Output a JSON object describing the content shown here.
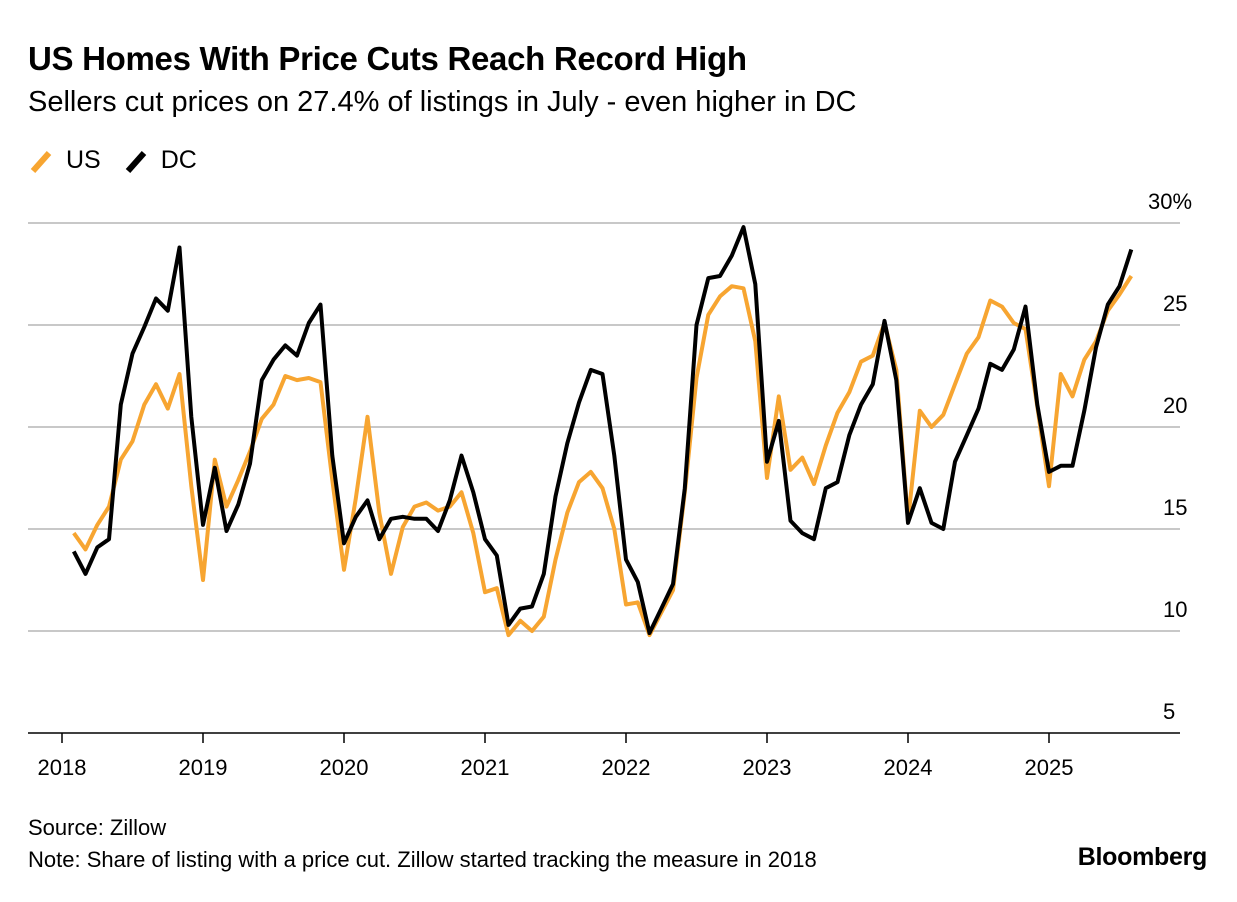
{
  "header": {
    "title": "US Homes With Price Cuts Reach Record High",
    "subtitle": "Sellers cut prices on 27.4% of listings in July - even higher in DC"
  },
  "legend": [
    {
      "label": "US",
      "color": "#f7a531"
    },
    {
      "label": "DC",
      "color": "#000000"
    }
  ],
  "footer": {
    "source": "Source: Zillow",
    "note": "Note: Share of listing with a price cut. Zillow started tracking the measure in 2018",
    "brand": "Bloomberg"
  },
  "chart_data": {
    "type": "line",
    "x_start": "2018-02",
    "x_unit": "month",
    "xlim": [
      "2018-01",
      "2026-01"
    ],
    "ylim": [
      5,
      30
    ],
    "y_ticks": [
      5,
      10,
      15,
      20,
      25,
      30
    ],
    "y_tick_labels": [
      "5",
      "10",
      "15",
      "20",
      "25",
      "30%"
    ],
    "x_tick_labels": [
      "2018",
      "2019",
      "2020",
      "2021",
      "2022",
      "2023",
      "2024",
      "2025"
    ],
    "grid": true,
    "legend_position": "top-left",
    "series": [
      {
        "name": "US",
        "color": "#f7a531",
        "values": [
          14.8,
          14.0,
          15.2,
          16.1,
          18.4,
          19.3,
          21.1,
          22.1,
          20.9,
          22.6,
          17.1,
          12.5,
          18.4,
          16.1,
          17.4,
          18.8,
          20.4,
          21.1,
          22.5,
          22.3,
          22.4,
          22.2,
          17.4,
          13.0,
          16.5,
          20.5,
          15.8,
          12.8,
          15.1,
          16.1,
          16.3,
          15.9,
          16.1,
          16.8,
          14.8,
          11.9,
          12.1,
          9.8,
          10.5,
          10.0,
          10.7,
          13.5,
          15.8,
          17.3,
          17.8,
          17.0,
          15.0,
          11.3,
          11.4,
          9.8,
          10.9,
          12.0,
          16.8,
          22.4,
          25.5,
          26.4,
          26.9,
          26.8,
          24.2,
          17.5,
          21.5,
          17.9,
          18.5,
          17.2,
          19.1,
          20.7,
          21.7,
          23.2,
          23.5,
          25.1,
          22.8,
          15.4,
          20.8,
          20.0,
          20.6,
          22.1,
          23.6,
          24.4,
          26.2,
          25.9,
          25.1,
          24.8,
          21.0,
          17.1,
          22.6,
          21.5,
          23.3,
          24.2,
          25.7,
          26.5,
          27.4
        ]
      },
      {
        "name": "DC",
        "color": "#000000",
        "values": [
          13.9,
          12.8,
          14.1,
          14.5,
          21.1,
          23.6,
          24.9,
          26.3,
          25.7,
          28.8,
          20.5,
          15.2,
          18.0,
          14.9,
          16.2,
          18.2,
          22.3,
          23.3,
          24.0,
          23.5,
          25.1,
          26.0,
          18.6,
          14.3,
          15.6,
          16.4,
          14.5,
          15.5,
          15.6,
          15.5,
          15.5,
          14.9,
          16.4,
          18.6,
          16.8,
          14.5,
          13.7,
          10.3,
          11.1,
          11.2,
          12.8,
          16.6,
          19.2,
          21.2,
          22.8,
          22.6,
          18.6,
          13.5,
          12.4,
          9.9,
          11.1,
          12.3,
          17.0,
          25.0,
          27.3,
          27.4,
          28.4,
          29.8,
          27.0,
          18.3,
          20.3,
          15.4,
          14.8,
          14.5,
          17.0,
          17.3,
          19.6,
          21.1,
          22.1,
          25.2,
          22.3,
          15.3,
          17.0,
          15.3,
          15.0,
          18.3,
          19.6,
          20.9,
          23.1,
          22.8,
          23.8,
          25.9,
          21.1,
          17.8,
          18.1,
          18.1,
          20.8,
          23.9,
          26.0,
          26.9,
          28.7
        ]
      }
    ]
  }
}
